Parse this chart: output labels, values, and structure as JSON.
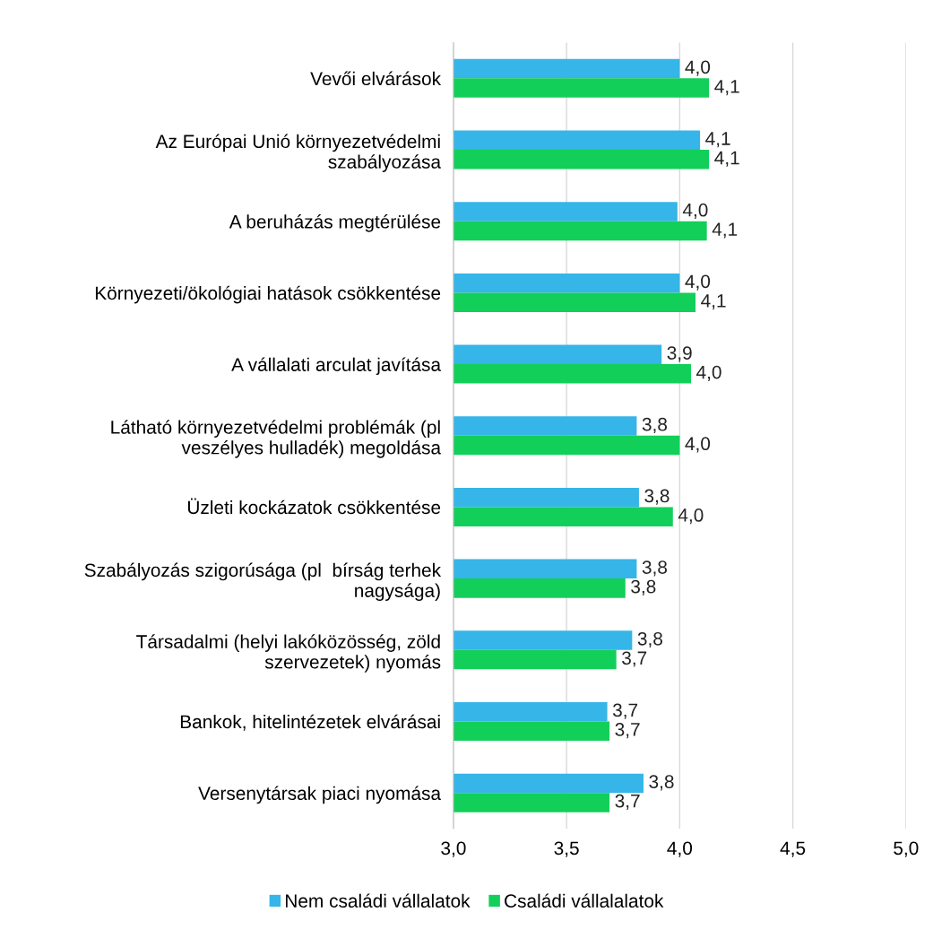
{
  "chart_data": {
    "type": "bar",
    "orientation": "horizontal",
    "categories": [
      "Vevői elvárások",
      "Az Európai Unió környezetvédelmi\nszabályozása",
      "A beruházás megtérülése",
      "Környezeti/ökológiai hatások csökkentése",
      "A vállalati arculat javítása",
      "Látható környezetvédelmi problémák (pl\nveszélyes hulladék) megoldása",
      "Üzleti kockázatok csökkentése",
      "Szabályozás szigorúsága (pl  bírság terhek\nnagysága)",
      "Társadalmi (helyi lakóközösség, zöld\nszervezetek) nyomás",
      "Bankok, hitelintézetek elvárásai",
      "Versenytársak piaci nyomása"
    ],
    "series": [
      {
        "name": "Nem családi vállalatok",
        "color": "#35b5e8",
        "values": [
          4.0,
          4.09,
          3.99,
          4.0,
          3.92,
          3.81,
          3.82,
          3.81,
          3.79,
          3.68,
          3.84
        ],
        "value_labels": [
          "4,0",
          "4,1",
          "4,0",
          "4,0",
          "3,9",
          "3,8",
          "3,8",
          "3,8",
          "3,8",
          "3,7",
          "3,8"
        ]
      },
      {
        "name": "Családi vállalalatok",
        "color": "#12cf5a",
        "values": [
          4.13,
          4.13,
          4.12,
          4.07,
          4.05,
          4.0,
          3.97,
          3.76,
          3.72,
          3.69,
          3.69
        ],
        "value_labels": [
          "4,1",
          "4,1",
          "4,1",
          "4,1",
          "4,0",
          "4,0",
          "4,0",
          "3,8",
          "3,7",
          "3,7",
          "3,7"
        ]
      }
    ],
    "xlim": [
      3.0,
      5.0
    ],
    "xticks": [
      {
        "value": 3.0,
        "label": "3,0"
      },
      {
        "value": 3.5,
        "label": "3,5"
      },
      {
        "value": 4.0,
        "label": "4,0"
      },
      {
        "value": 4.5,
        "label": "4,5"
      },
      {
        "value": 5.0,
        "label": "5,0"
      }
    ],
    "grid": "x",
    "legend": "bottom"
  }
}
